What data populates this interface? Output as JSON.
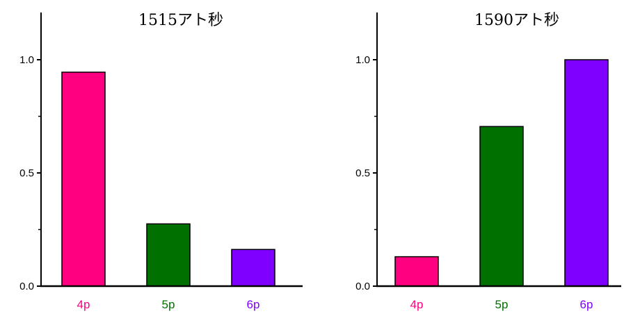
{
  "chart_data": [
    {
      "type": "bar",
      "title": "1515アト秒",
      "categories": [
        "4p",
        "5p",
        "6p"
      ],
      "values": [
        0.945,
        0.275,
        0.162
      ],
      "colors": [
        "#ff0080",
        "#007000",
        "#8000ff"
      ],
      "yticks": [
        "0.0",
        "0.5",
        "1.0"
      ],
      "ylim": [
        0,
        1.2
      ],
      "xlabel": "",
      "ylabel": ""
    },
    {
      "type": "bar",
      "title": "1590アト秒",
      "categories": [
        "4p",
        "5p",
        "6p"
      ],
      "values": [
        0.13,
        0.705,
        1.0
      ],
      "colors": [
        "#ff0080",
        "#007000",
        "#8000ff"
      ],
      "yticks": [
        "0.0",
        "0.5",
        "1.0"
      ],
      "ylim": [
        0,
        1.2
      ],
      "xlabel": "",
      "ylabel": ""
    }
  ]
}
